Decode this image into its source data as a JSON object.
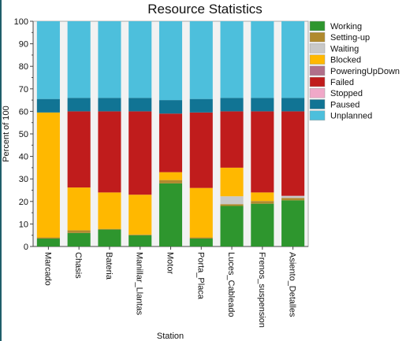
{
  "chart_data": {
    "type": "bar",
    "stacked": true,
    "title": "Resource Statistics",
    "xlabel": "Station",
    "ylabel": "Percent of 100",
    "ylim": [
      0,
      100
    ],
    "yticks": [
      0,
      10,
      20,
      30,
      40,
      50,
      60,
      70,
      80,
      90,
      100
    ],
    "grid": false,
    "legend_position": "right",
    "categories": [
      "Marcado",
      "Chasis",
      "Bateria",
      "Manillar_Llantas",
      "Motor",
      "Porta_Placa",
      "Luces_Cableado",
      "Frenos_suspension",
      "Asiento_Detalles"
    ],
    "series": [
      {
        "name": "Working",
        "color": "#2e962e",
        "values": [
          3.5,
          6,
          7.5,
          5,
          28,
          3.5,
          18,
          19,
          20.5
        ]
      },
      {
        "name": "Setting-up",
        "color": "#b08a2e",
        "values": [
          0.5,
          1.2,
          0.3,
          0.3,
          1.5,
          0.5,
          0.8,
          1.2,
          1
        ]
      },
      {
        "name": "Waiting",
        "color": "#c8c8c8",
        "values": [
          0,
          0,
          0,
          0,
          0,
          0,
          3.5,
          0,
          1
        ]
      },
      {
        "name": "Blocked",
        "color": "#ffb800",
        "values": [
          55.5,
          19,
          16.2,
          17.7,
          3.5,
          22,
          12.7,
          3.8,
          0
        ]
      },
      {
        "name": "PoweringUpDown",
        "color": "#b0708a",
        "values": [
          0,
          0,
          0,
          0,
          0,
          0,
          0,
          0,
          0
        ]
      },
      {
        "name": "Failed",
        "color": "#c01c1c",
        "values": [
          0,
          33.8,
          36,
          37,
          26,
          33.5,
          25,
          36,
          37.5
        ]
      },
      {
        "name": "Stopped",
        "color": "#f0a8c8",
        "values": [
          0,
          0,
          0,
          0,
          0,
          0,
          0,
          0,
          0
        ]
      },
      {
        "name": "Paused",
        "color": "#117494",
        "values": [
          6,
          6,
          6,
          6,
          6,
          6,
          6,
          6,
          6
        ]
      },
      {
        "name": "Unplanned",
        "color": "#4dbfdc",
        "values": [
          34.5,
          34,
          34,
          34,
          35,
          34.5,
          34,
          34,
          34
        ]
      }
    ]
  }
}
